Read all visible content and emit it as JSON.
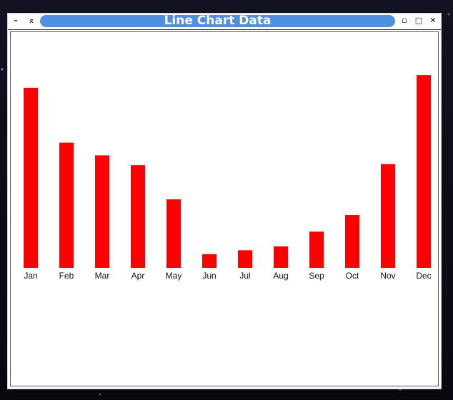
{
  "window": {
    "title": "Line Chart Data",
    "buttons": {
      "menu": "–",
      "shade": "⌅",
      "minimize": "▫",
      "maximize": "□",
      "close": "✕"
    }
  },
  "chart_data": {
    "type": "bar",
    "categories": [
      "Jan",
      "Feb",
      "Mar",
      "Apr",
      "May",
      "Jun",
      "Jul",
      "Aug",
      "Sep",
      "Oct",
      "Nov",
      "Dec"
    ],
    "values": [
      92,
      64,
      57.5,
      52.5,
      35,
      7,
      9,
      11,
      18.5,
      27,
      53,
      98.5
    ],
    "ylim": [
      0,
      100
    ],
    "color": "#ff0000",
    "grid": false,
    "title": "",
    "xlabel": "",
    "ylabel": ""
  }
}
